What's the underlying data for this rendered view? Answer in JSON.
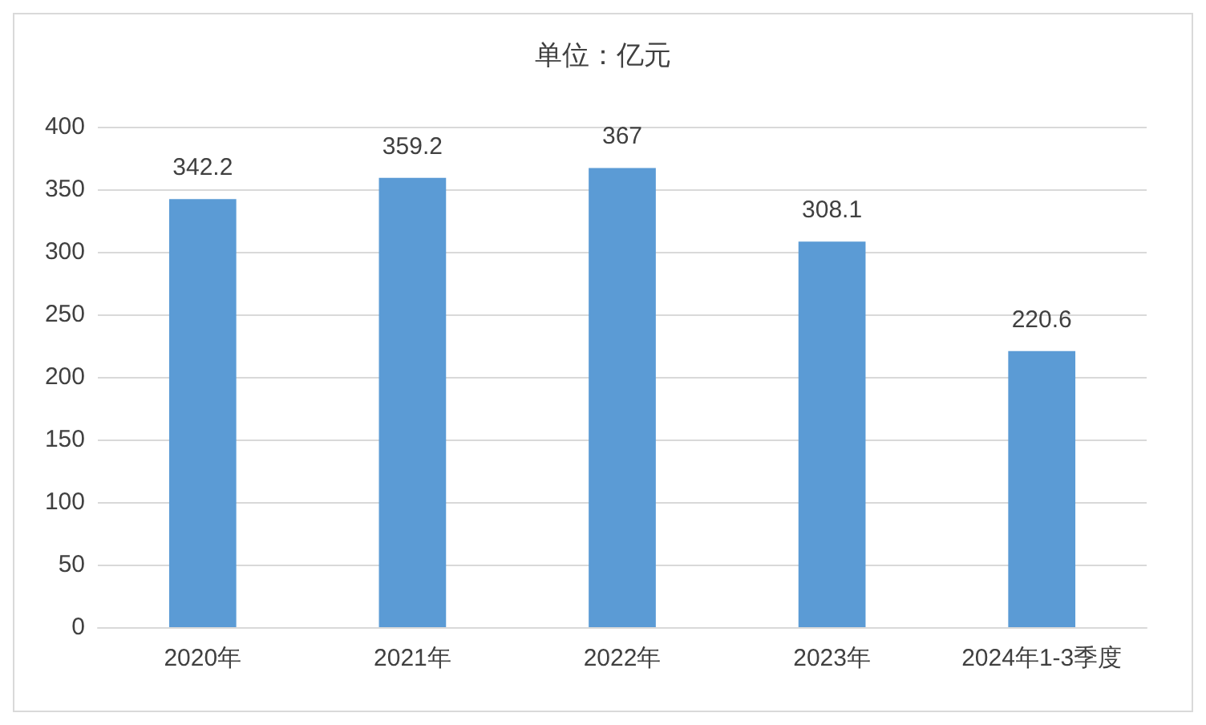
{
  "chart_data": {
    "type": "bar",
    "title": "单位：亿元",
    "categories": [
      "2020年",
      "2021年",
      "2022年",
      "2023年",
      "2024年1-3季度"
    ],
    "values": [
      342.2,
      359.2,
      367,
      308.1,
      220.6
    ],
    "color": "#5b9bd5",
    "ylim": [
      0,
      400
    ],
    "yticks": [
      0,
      50,
      100,
      150,
      200,
      250,
      300,
      350,
      400
    ],
    "grid": "y",
    "data_labels": true
  }
}
